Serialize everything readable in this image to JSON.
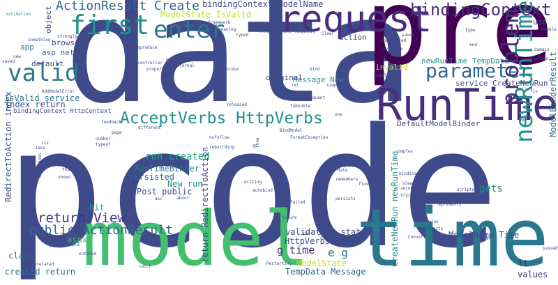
{
  "colors": {
    "navy": "#3e4a89",
    "indigo": "#472f7d",
    "purple": "#440154",
    "teal": "#2a788e",
    "blue": "#31688e",
    "cyan": "#21918c",
    "green": "#22a884",
    "light_green": "#44bf70",
    "lime": "#7ad151",
    "yellow": "#bddf26",
    "yellow2": "#fde725"
  },
  "words": [
    {
      "text": "pcode",
      "color": "navy"
    },
    {
      "text": "data",
      "color": "navy"
    },
    {
      "text": "pre",
      "color": "purple"
    },
    {
      "text": "model",
      "color": "light_green"
    },
    {
      "text": "time",
      "color": "teal"
    },
    {
      "text": "request",
      "color": "indigo"
    },
    {
      "text": "RunTime",
      "color": "indigo"
    },
    {
      "text": "valid",
      "color": "teal"
    },
    {
      "text": "first",
      "color": "cyan"
    },
    {
      "text": "enter",
      "color": "teal"
    },
    {
      "text": "parameter",
      "color": "blue"
    },
    {
      "text": "newRunTime",
      "color": "cyan"
    },
    {
      "text": "problem",
      "color": "indigo"
    },
    {
      "text": "bindingContext",
      "color": "indigo"
    },
    {
      "text": "AcceptVerbs HttpVerbs",
      "color": "cyan"
    },
    {
      "text": "ActionResult Create",
      "color": "blue"
    },
    {
      "text": "public ActionResult",
      "color": "blue"
    },
    {
      "text": "return View",
      "color": "indigo"
    },
    {
      "text": "bindingContext ModelName",
      "color": "navy"
    },
    {
      "text": "ModelState IsValid",
      "color": "yellow"
    },
    {
      "text": "run created",
      "color": "green"
    },
    {
      "text": "RunTimeBinder",
      "color": "teal"
    },
    {
      "text": "persisted",
      "color": "blue"
    },
    {
      "text": "Post public",
      "color": "navy"
    },
    {
      "text": "New run",
      "color": "cyan"
    },
    {
      "text": "gets",
      "color": "cyan"
    },
    {
      "text": "hit",
      "color": "green"
    },
    {
      "text": "g time",
      "color": "indigo"
    },
    {
      "text": "e g",
      "color": "teal"
    },
    {
      "text": "ModelName Time",
      "color": "navy"
    },
    {
      "text": "ModelBinderResult",
      "color": "teal"
    },
    {
      "text": "values",
      "color": "indigo"
    },
    {
      "text": "lt",
      "color": "indigo"
    },
    {
      "text": "aspx",
      "color": "light_green"
    },
    {
      "text": "class",
      "color": "blue"
    },
    {
      "text": "created return",
      "color": "teal"
    },
    {
      "text": "index return",
      "color": "navy"
    },
    {
      "text": "IsValid service",
      "color": "teal"
    },
    {
      "text": "bindingContext HttpContext",
      "color": "navy"
    },
    {
      "text": "RedirectToAction index",
      "color": "navy"
    },
    {
      "text": "validation state",
      "color": "navy"
    },
    {
      "text": "HttpVerbs Post",
      "color": "navy"
    },
    {
      "text": "ModelState",
      "color": "yellow"
    },
    {
      "text": "TempData Message",
      "color": "blue"
    },
    {
      "text": "return RedirectToAction",
      "color": "navy"
    },
    {
      "text": "CreateNewRun newRunTime",
      "color": "cyan"
    },
    {
      "text": "DefaultModelBinder",
      "color": "navy"
    },
    {
      "text": "service CreateNewRun",
      "color": "navy"
    },
    {
      "text": "newRunTime TempData",
      "color": "cyan"
    },
    {
      "text": "invalid",
      "color": "yellow"
    },
    {
      "text": "Message New",
      "color": "cyan"
    },
    {
      "text": "original",
      "color": "navy"
    },
    {
      "text": "action",
      "color": "navy"
    },
    {
      "text": "use",
      "color": "navy"
    },
    {
      "text": "asp net",
      "color": "blue"
    },
    {
      "text": "browser",
      "color": "navy"
    },
    {
      "text": "default",
      "color": "navy"
    },
    {
      "text": "app",
      "color": "teal"
    },
    {
      "text": "object",
      "color": "navy"
    },
    {
      "text": "HttpContext Request",
      "color": "navy"
    },
    {
      "text": "validation",
      "color": "cyan"
    },
    {
      "text": "strongly",
      "color": "navy"
    },
    {
      "text": "typed",
      "color": "navy"
    },
    {
      "text": "meaning",
      "color": "navy"
    },
    {
      "text": "framework",
      "color": "navy"
    },
    {
      "text": "considered",
      "color": "navy"
    },
    {
      "text": "override",
      "color": "navy"
    },
    {
      "text": "double",
      "color": "navy"
    },
    {
      "text": "saves",
      "color": "navy"
    },
    {
      "text": "fix",
      "color": "navy"
    },
    {
      "text": "web",
      "color": "navy"
    },
    {
      "text": "ModelBinder",
      "color": "navy"
    },
    {
      "text": "ToDouble",
      "color": "navy"
    },
    {
      "text": "BindModel",
      "color": "navy"
    },
    {
      "text": "FormatException",
      "color": "navy"
    },
    {
      "text": "nofollow",
      "color": "navy"
    },
    {
      "text": "rebuilding",
      "color": "navy"
    },
    {
      "text": "weblogs",
      "color": "navy"
    },
    {
      "text": "autobind",
      "color": "navy"
    },
    {
      "text": "writing",
      "color": "navy"
    },
    {
      "text": "flushes",
      "color": "navy"
    },
    {
      "text": "remembers",
      "color": "navy"
    },
    {
      "text": "ViewData",
      "color": "navy"
    },
    {
      "text": "binding",
      "color": "navy"
    },
    {
      "text": "complex",
      "color": "navy"
    },
    {
      "text": "Restarting",
      "color": "navy"
    },
    {
      "text": "catch",
      "color": "navy"
    },
    {
      "text": "future",
      "color": "navy"
    },
    {
      "text": "persists",
      "color": "navy"
    },
    {
      "text": "contains",
      "color": "navy"
    },
    {
      "text": "affects",
      "color": "navy"
    },
    {
      "text": "Convert",
      "color": "navy"
    },
    {
      "text": "three",
      "color": "navy"
    },
    {
      "text": "example",
      "color": "navy"
    },
    {
      "text": "unrelated",
      "color": "navy"
    },
    {
      "text": "entered",
      "color": "navy"
    },
    {
      "text": "passed",
      "color": "navy"
    },
    {
      "text": "correctly",
      "color": "navy"
    },
    {
      "text": "missing",
      "color": "navy"
    },
    {
      "text": "represents",
      "color": "navy"
    },
    {
      "text": "second",
      "color": "navy"
    },
    {
      "text": "View",
      "color": "navy"
    },
    {
      "text": "trying",
      "color": "navy"
    },
    {
      "text": "different",
      "color": "navy"
    },
    {
      "text": "page",
      "color": "navy"
    },
    {
      "text": "feedback",
      "color": "navy"
    },
    {
      "text": "number",
      "color": "navy"
    },
    {
      "text": "typeof",
      "color": "navy"
    },
    {
      "text": "section",
      "color": "navy"
    },
    {
      "text": "archive",
      "color": "navy"
    },
    {
      "text": "think",
      "color": "navy"
    },
    {
      "text": "shown",
      "color": "navy"
    },
    {
      "text": "directives",
      "color": "navy"
    },
    {
      "text": "hand",
      "color": "navy"
    },
    {
      "text": "basic",
      "color": "navy"
    },
    {
      "text": "released",
      "color": "navy"
    },
    {
      "text": "subsequent",
      "color": "navy"
    },
    {
      "text": "simpler",
      "color": "navy"
    },
    {
      "text": "rel",
      "color": "navy"
    },
    {
      "text": "kind",
      "color": "navy"
    },
    {
      "text": "access",
      "color": "navy"
    },
    {
      "text": "internal",
      "color": "navy"
    },
    {
      "text": "properties",
      "color": "navy"
    },
    {
      "text": "controller",
      "color": "navy"
    },
    {
      "text": "reproduce",
      "color": "navy"
    },
    {
      "text": "AddModelError",
      "color": "navy"
    },
    {
      "text": "something",
      "color": "navy"
    },
    {
      "text": "new",
      "color": "navy"
    },
    {
      "text": "saved",
      "color": "navy"
    },
    {
      "text": "one",
      "color": "navy"
    },
    {
      "text": "var",
      "color": "navy"
    },
    {
      "text": "state",
      "color": "navy"
    },
    {
      "text": "data",
      "color": "navy"
    },
    {
      "text": "line",
      "color": "navy"
    },
    {
      "text": "gt",
      "color": "navy"
    },
    {
      "text": "Clear",
      "color": "navy"
    },
    {
      "text": "another",
      "color": "navy"
    },
    {
      "text": "failed",
      "color": "navy"
    },
    {
      "text": "about",
      "color": "navy"
    },
    {
      "text": "asc",
      "color": "navy"
    },
    {
      "text": "iis",
      "color": "navy"
    },
    {
      "text": "Java",
      "color": "navy"
    },
    {
      "text": "scriptgu",
      "color": "navy"
    },
    {
      "text": "ViewPage",
      "color": "navy"
    },
    {
      "text": "domain",
      "color": "navy"
    },
    {
      "text": "type",
      "color": "navy"
    },
    {
      "text": "end",
      "color": "navy"
    },
    {
      "text": "net",
      "color": "navy"
    }
  ]
}
